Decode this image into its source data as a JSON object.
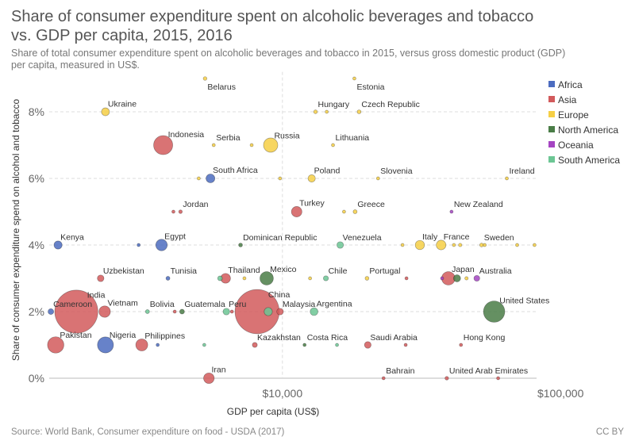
{
  "chart_data": {
    "type": "scatter",
    "title": "Share of consumer expenditure spent on alcoholic beverages and tobacco vs. GDP per capita, 2015, 2016",
    "title_lines": [
      "Share of consumer expenditure spent on alcoholic beverages and tobacco",
      "vs. GDP per capita, 2015, 2016"
    ],
    "subtitle_lines": [
      "Share of total consumer expenditure spent on alcoholic beverages and tobacco in 2015, versus gross domestic product (GDP)",
      "per capita, measured in US$."
    ],
    "x_label": "GDP per capita (US$)",
    "y_label": "Share of consumer expenditure spend on alcohol and tobacco",
    "source": "Source: World Bank, Consumer expenditure on food - USDA (2017)",
    "license": "CC BY",
    "x_log": true,
    "grid": true,
    "legend": "right",
    "xlim": [
      1450,
      82000
    ],
    "xticks": [
      {
        "value": 10000,
        "label": "$10,000"
      },
      {
        "value": 100000,
        "label": "$100,000"
      }
    ],
    "ylim": [
      0,
      9.2
    ],
    "yticks": [
      {
        "value": 0,
        "label": "0%"
      },
      {
        "value": 2,
        "label": "2%"
      },
      {
        "value": 4,
        "label": "4%"
      },
      {
        "value": 6,
        "label": "6%"
      },
      {
        "value": 8,
        "label": "8%"
      }
    ],
    "series": [
      {
        "name": "Africa",
        "color": "#4c6cc0",
        "labels": [
          "South Africa",
          "Kenya",
          "Egypt",
          "Tunisia",
          "Cameroon",
          "Nigeria",
          null,
          null
        ],
        "x": [
          5510,
          1560,
          3675,
          3875,
          1470,
          2310,
          3040,
          3560
        ],
        "values": [
          6,
          4,
          4,
          3,
          2,
          1,
          4,
          1
        ],
        "size": [
          55,
          47,
          93,
          11,
          23,
          181,
          2,
          1.5
        ]
      },
      {
        "name": "Asia",
        "color": "#d25a5c",
        "labels": [
          "Indonesia",
          "Jordan",
          "Turkey",
          "Uzbekistan",
          "Thailand",
          "Japan",
          "India",
          "Vietnam",
          "China",
          "Malaysia",
          "Pakistan",
          "Philippines",
          "Kazakhstan",
          "Saudi Arabia",
          "Hong Kong",
          "Iran",
          "Bahrain",
          "United Arab Emirates",
          null,
          null,
          null,
          null,
          null,
          null
        ],
        "x": [
          3725,
          4300,
          11250,
          2220,
          6245,
          39500,
          1815,
          2295,
          8110,
          9805,
          1530,
          3120,
          7955,
          20270,
          43850,
          5440,
          23100,
          38990,
          4055,
          27930,
          4100,
          6580,
          27740,
          59660
        ],
        "values": [
          7,
          5,
          5,
          3,
          3,
          3,
          2,
          2,
          2,
          2,
          1,
          1,
          1,
          1,
          1,
          0,
          0,
          0,
          5,
          3,
          2,
          2,
          1,
          0
        ],
        "size": [
          258,
          9,
          78,
          31,
          68,
          127,
          1310,
          92,
          1380,
          31,
          189,
          101,
          17.5,
          31.5,
          7.3,
          79,
          1.4,
          9.2,
          1,
          1.5,
          1,
          1,
          1,
          1
        ]
      },
      {
        "name": "Europe",
        "color": "#f6cf45",
        "labels": [
          "Belarus",
          "Estonia",
          "Ukraine",
          "Hungary",
          "Czech Republic",
          "Serbia",
          "Russia",
          "Lithuania",
          "Poland",
          "Slovenia",
          "Ireland",
          "Greece",
          "Italy",
          "France",
          "Sweden",
          "Portugal",
          null,
          null,
          null,
          null,
          null,
          null,
          null,
          null,
          null,
          null,
          null,
          null,
          null,
          null
        ],
        "x": [
          5270,
          18140,
          2310,
          13150,
          18860,
          5660,
          9070,
          15200,
          12740,
          22070,
          64100,
          18250,
          31200,
          37200,
          52000,
          20140,
          5000,
          7750,
          9805,
          14430,
          16650,
          27030,
          41360,
          43560,
          53360,
          69800,
          80600,
          7300,
          12570,
          45900
        ],
        "values": [
          9,
          9,
          8,
          8,
          8,
          7,
          7,
          7,
          6,
          6,
          6,
          5,
          4,
          4,
          4,
          3,
          6,
          7,
          6,
          8,
          5,
          4,
          4,
          4,
          4,
          4,
          4,
          3,
          3,
          3
        ],
        "size": [
          9.5,
          1.3,
          45,
          9.8,
          10.5,
          7,
          144,
          2.9,
          38,
          2,
          4.7,
          11,
          60,
          66,
          9.8,
          10.3,
          0.6,
          0.6,
          0.5,
          0.4,
          0.6,
          4.4,
          0.6,
          8.4,
          0.5,
          0.5,
          0.4,
          0.6,
          0.5,
          8
        ]
      },
      {
        "name": "North America",
        "color": "#4a7d47",
        "labels": [
          "Dominican Republic",
          "Mexico",
          "Guatemala",
          "Costa Rica",
          "United States",
          null
        ],
        "x": [
          7070,
          8775,
          4355,
          12010,
          57700,
          42440
        ],
        "values": [
          4,
          3,
          2,
          1,
          2,
          3
        ],
        "size": [
          10.5,
          127,
          16,
          4.8,
          321,
          36
        ]
      },
      {
        "name": "Oceania",
        "color": "#a545c2",
        "labels": [
          "New Zealand",
          "Australia",
          null
        ],
        "x": [
          40550,
          50000,
          37500
        ],
        "values": [
          5,
          3,
          3
        ],
        "size": [
          4.6,
          24,
          0.9
        ]
      },
      {
        "name": "South America",
        "color": "#6cc694",
        "labels": [
          "Venezuela",
          "Chile",
          "Peru",
          "Argentina",
          "Bolivia",
          null,
          null,
          null,
          null
        ],
        "x": [
          16130,
          14330,
          6285,
          12990,
          3270,
          5965,
          5235,
          15710,
          8890
        ],
        "values": [
          4,
          3,
          2,
          2,
          2,
          3,
          1,
          1,
          2
        ],
        "size": [
          31,
          18,
          31,
          43,
          11,
          16,
          3.4,
          3.4,
          48
        ]
      }
    ]
  }
}
